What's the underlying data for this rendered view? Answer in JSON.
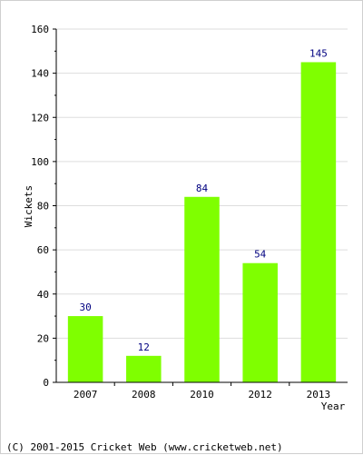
{
  "chart_data": {
    "type": "bar",
    "title": "",
    "xlabel": "Year",
    "ylabel": "Wickets",
    "categories": [
      "2007",
      "2008",
      "2010",
      "2012",
      "2013"
    ],
    "values": [
      30,
      12,
      84,
      54,
      145
    ],
    "data_labels": [
      "30",
      "12",
      "84",
      "54",
      "145"
    ],
    "ylim": [
      0,
      160
    ],
    "yticks": [
      0,
      20,
      40,
      60,
      80,
      100,
      120,
      140,
      160
    ],
    "grid": true,
    "legend": "none"
  },
  "footer": "(C) 2001-2015 Cricket Web (www.cricketweb.net)",
  "colors": {
    "bar": "#7fff00",
    "label": "#000080",
    "grid": "#dddddd",
    "axis": "#000000"
  }
}
